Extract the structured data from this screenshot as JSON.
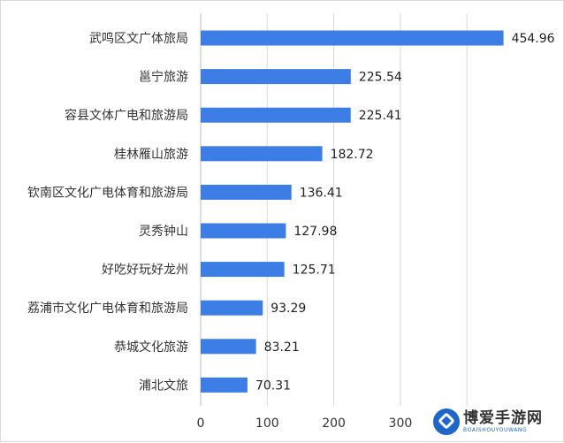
{
  "chart_data": {
    "type": "bar",
    "orientation": "horizontal",
    "categories": [
      "武鸣区文广体旅局",
      "邕宁旅游",
      "容县文体广电和旅游局",
      "桂林雁山旅游",
      "钦南区文化广电体育和旅游局",
      "灵秀钟山",
      "好吃好玩好龙州",
      "荔浦市文化广电体育和旅游局",
      "恭城文化旅游",
      "浦北文旅"
    ],
    "values": [
      454.96,
      225.54,
      225.41,
      182.72,
      136.41,
      127.98,
      125.71,
      93.29,
      83.21,
      70.31
    ],
    "value_labels": [
      "454.96",
      "225.54",
      "225.41",
      "182.72",
      "136.41",
      "127.98",
      "125.71",
      "93.29",
      "83.21",
      "70.31"
    ],
    "xlim": [
      0,
      400
    ],
    "xticks": [
      0,
      100,
      200,
      300
    ],
    "xtick_labels": [
      "0",
      "100",
      "200",
      "300"
    ],
    "grid": true,
    "bar_color": "#3d7ee6",
    "title": "",
    "xlabel": "",
    "ylabel": ""
  },
  "watermark": {
    "main_text": "博爱手游网",
    "sub_text": "BOAISHOUYOUWANG",
    "icon": "logo-badge-icon",
    "color": "#1f66c9"
  }
}
